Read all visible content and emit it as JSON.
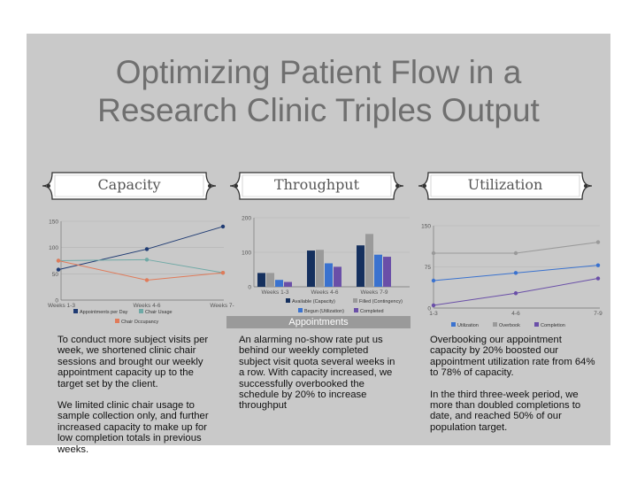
{
  "title": {
    "line1": "Optimizing Patient Flow in a",
    "line2": "Research Clinic Triples Output"
  },
  "sections": {
    "capacity": {
      "heading": "Capacity",
      "paragraphs": [
        "To conduct more subject visits per week, we shortened clinic chair sessions and brought our weekly appointment capacity up to the target set by the client.",
        "We limited clinic chair usage to sample collection only, and further increased capacity to make up for low completion totals in previous weeks."
      ]
    },
    "throughput": {
      "heading": "Throughput",
      "caption": "Appointments",
      "paragraphs": [
        "An alarming no-show rate put us behind our weekly completed subject visit quota several weeks in a row. With capacity increased, we successfully overbooked the schedule by 20% to increase throughput"
      ]
    },
    "utilization": {
      "heading": "Utilization",
      "paragraphs": [
        "Overbooking our appointment capacity by 20% boosted our appointment utilization rate from 64% to 78% of capacity.",
        "In the third three-week period, we more than doubled completions to date, and reached 50% of our population target."
      ]
    }
  },
  "colors": {
    "navy": "#1f3b73",
    "teal": "#6fa9a6",
    "salmon": "#e07b5a",
    "gray": "#9a9a9a",
    "blue": "#3a72cf",
    "purple": "#6a4fa8",
    "dark_navy": "#15305e"
  },
  "chart_data": [
    {
      "id": "capacity",
      "type": "line",
      "categories": [
        "Weeks 1-3",
        "Weeks 4-6",
        "Weeks 7-"
      ],
      "series": [
        {
          "name": "Appointments per Day",
          "values": [
            58,
            97,
            140
          ],
          "color": "#1f3b73"
        },
        {
          "name": "Chair Usage",
          "values": [
            75,
            77,
            52
          ],
          "color": "#6fa9a6"
        },
        {
          "name": "Chair Occupancy",
          "values": [
            75,
            38,
            52
          ],
          "color": "#e07b5a"
        }
      ],
      "yticks": [
        "0",
        "50",
        "100",
        "150"
      ],
      "ylim": [
        0,
        150
      ],
      "grid": true,
      "legend": "bottom"
    },
    {
      "id": "throughput",
      "type": "bar",
      "categories": [
        "Weeks 1-3",
        "Weeks 4-6",
        "Weeks 7-9"
      ],
      "series": [
        {
          "name": "Available (Capacity)",
          "values": [
            40,
            105,
            120
          ],
          "color": "#15305e"
        },
        {
          "name": "Filled (Contingency)",
          "values": [
            40,
            107,
            153
          ],
          "color": "#9a9a9a"
        },
        {
          "name": "Begun (Utilization)",
          "values": [
            20,
            68,
            93
          ],
          "color": "#3a72cf"
        },
        {
          "name": "Completed",
          "values": [
            14,
            58,
            87
          ],
          "color": "#6a4fa8"
        }
      ],
      "yticks": [
        "0",
        "100",
        "200"
      ],
      "ylim": [
        0,
        200
      ],
      "grid": true,
      "legend": "bottom"
    },
    {
      "id": "utilization",
      "type": "line",
      "categories": [
        "1-3",
        "4-6",
        "7-9"
      ],
      "series": [
        {
          "name": "Utilization",
          "values": [
            50,
            64,
            78
          ],
          "color": "#3a72cf"
        },
        {
          "name": "Overbook",
          "values": [
            100,
            100,
            120
          ],
          "color": "#9a9a9a"
        },
        {
          "name": "Completion",
          "values": [
            5,
            27,
            54
          ],
          "color": "#6a4fa8"
        }
      ],
      "yticks": [
        "0",
        "75",
        "150"
      ],
      "ylim": [
        0,
        150
      ],
      "grid": true,
      "legend": "bottom"
    }
  ]
}
